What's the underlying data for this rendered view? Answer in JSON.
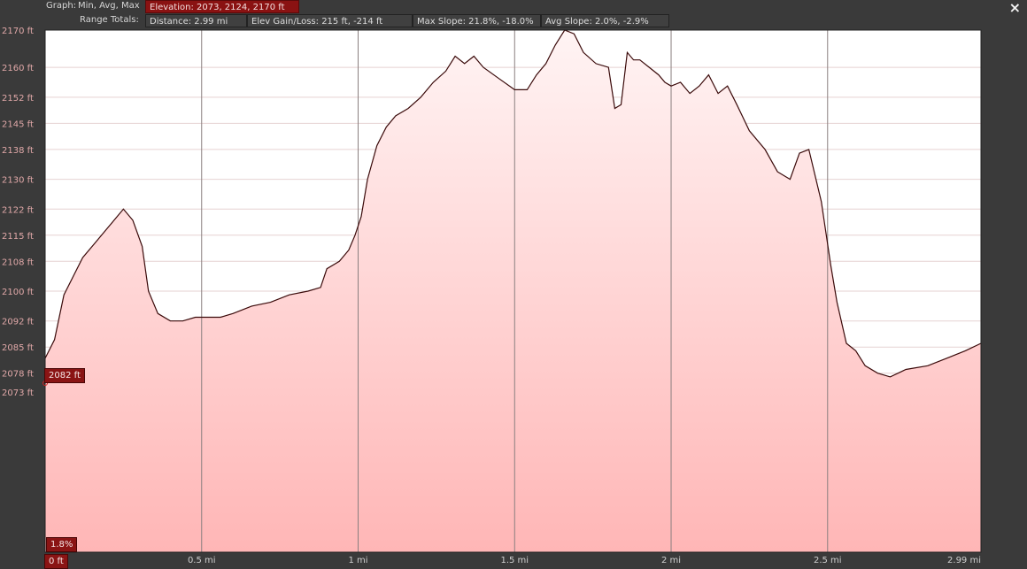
{
  "header": {
    "graph_label": "Graph:",
    "graph_value": "Min, Avg, Max",
    "elevation": "Elevation: 2073, 2124, 2170 ft",
    "range_label": "Range Totals:",
    "distance": "Distance: 2.99 mi",
    "elev_gain_loss": "Elev Gain/Loss: 215 ft, -214 ft",
    "max_slope": "Max Slope: 21.8%, -18.0%",
    "avg_slope": "Avg Slope: 2.0%, -2.9%"
  },
  "close_icon": "×",
  "cursor_readouts": {
    "elevation": "2082 ft",
    "slope": "1.8%",
    "distance": "0 ft"
  },
  "chart_data": {
    "type": "area",
    "xlabel": "",
    "ylabel": "",
    "xlim": [
      0,
      2.99
    ],
    "ylim": [
      2030,
      2170
    ],
    "grid": true,
    "x_ticks": [
      {
        "v": 0.5,
        "label": "0.5 mi"
      },
      {
        "v": 1.0,
        "label": "1 mi"
      },
      {
        "v": 1.5,
        "label": "1.5 mi"
      },
      {
        "v": 2.0,
        "label": "2 mi"
      },
      {
        "v": 2.5,
        "label": "2.5 mi"
      }
    ],
    "x_end_labels": {
      "start": "0 ft",
      "end": "2.99 mi"
    },
    "y_ticks": [
      {
        "v": 2170,
        "label": "2170 ft"
      },
      {
        "v": 2160,
        "label": "2160 ft"
      },
      {
        "v": 2152,
        "label": "2152 ft"
      },
      {
        "v": 2145,
        "label": "2145 ft"
      },
      {
        "v": 2138,
        "label": "2138 ft"
      },
      {
        "v": 2130,
        "label": "2130 ft"
      },
      {
        "v": 2122,
        "label": "2122 ft"
      },
      {
        "v": 2115,
        "label": "2115 ft"
      },
      {
        "v": 2108,
        "label": "2108 ft"
      },
      {
        "v": 2100,
        "label": "2100 ft"
      },
      {
        "v": 2092,
        "label": "2092 ft"
      },
      {
        "v": 2085,
        "label": "2085 ft"
      },
      {
        "v": 2078,
        "label": "2078 ft"
      },
      {
        "v": 2073,
        "label": "2073 ft"
      }
    ],
    "series": [
      {
        "x": [
          0.0,
          0.03,
          0.06,
          0.09,
          0.12,
          0.16,
          0.2,
          0.25,
          0.28,
          0.31,
          0.33,
          0.36,
          0.4,
          0.44,
          0.48,
          0.52,
          0.56,
          0.6,
          0.66,
          0.72,
          0.78,
          0.84,
          0.88,
          0.9,
          0.94,
          0.97,
          0.99,
          1.01,
          1.03,
          1.06,
          1.09,
          1.12,
          1.16,
          1.2,
          1.24,
          1.28,
          1.31,
          1.34,
          1.37,
          1.4,
          1.45,
          1.5,
          1.54,
          1.57,
          1.6,
          1.63,
          1.66,
          1.69,
          1.72,
          1.76,
          1.8,
          1.82,
          1.84,
          1.86,
          1.88,
          1.9,
          1.93,
          1.96,
          1.98,
          2.0,
          2.03,
          2.06,
          2.09,
          2.12,
          2.15,
          2.18,
          2.21,
          2.25,
          2.3,
          2.34,
          2.38,
          2.41,
          2.44,
          2.48,
          2.51,
          2.53,
          2.56,
          2.59,
          2.62,
          2.66,
          2.7,
          2.75,
          2.82,
          2.88,
          2.94,
          2.99
        ],
        "values": [
          2082,
          2087,
          2099,
          2104,
          2109,
          2113,
          2117,
          2122,
          2119,
          2112,
          2100,
          2094,
          2092,
          2092,
          2093,
          2093,
          2093,
          2094,
          2096,
          2097,
          2099,
          2100,
          2101,
          2106,
          2108,
          2111,
          2115,
          2120,
          2130,
          2139,
          2144,
          2147,
          2149,
          2152,
          2156,
          2159,
          2163,
          2161,
          2163,
          2160,
          2157,
          2154,
          2154,
          2158,
          2161,
          2166,
          2170,
          2169,
          2164,
          2161,
          2160,
          2149,
          2150,
          2164,
          2162,
          2162,
          2160,
          2158,
          2156,
          2155,
          2156,
          2153,
          2155,
          2158,
          2153,
          2155,
          2150,
          2143,
          2138,
          2132,
          2130,
          2137,
          2138,
          2124,
          2107,
          2097,
          2086,
          2084,
          2080,
          2078,
          2077,
          2079,
          2080,
          2082,
          2084,
          2086
        ]
      }
    ]
  }
}
